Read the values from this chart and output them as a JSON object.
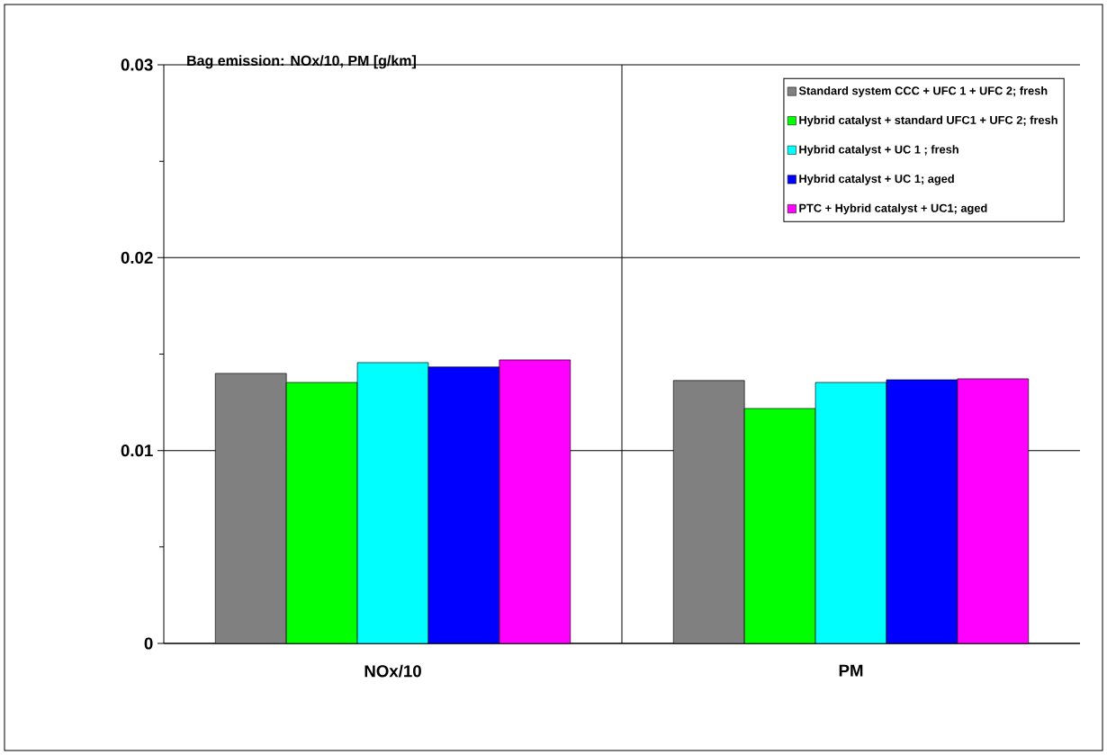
{
  "chart_data": {
    "type": "bar",
    "title": "Bag emission: NOx/10, PM [g/km]",
    "categories": [
      "NOx/10",
      "PM"
    ],
    "series": [
      {
        "name": "Standard system CCC + UFC 1 + UFC 2; fresh",
        "color": "#808080",
        "values": [
          0.014,
          0.01363
        ]
      },
      {
        "name": "Hybrid catalyst + standard UFC1 + UFC 2; fresh",
        "color": "#00ff00",
        "values": [
          0.01353,
          0.01218
        ]
      },
      {
        "name": "Hybrid catalyst + UC 1 ; fresh",
        "color": "#00ffff",
        "values": [
          0.01456,
          0.01353
        ]
      },
      {
        "name": "Hybrid catalyst + UC 1; aged",
        "color": "#0000ff",
        "values": [
          0.01433,
          0.01367
        ]
      },
      {
        "name": "PTC + Hybrid catalyst + UC1; aged",
        "color": "#ff00ff",
        "values": [
          0.0147,
          0.01372
        ]
      }
    ],
    "ylim": [
      0,
      0.03
    ],
    "yticks": [
      0,
      {
        "value": 0.005,
        "label": null
      },
      0.01,
      {
        "value": 0.015,
        "label": null
      },
      0.02,
      {
        "value": 0.025,
        "label": null
      },
      0.03
    ],
    "grid": true,
    "legend": "top right"
  }
}
